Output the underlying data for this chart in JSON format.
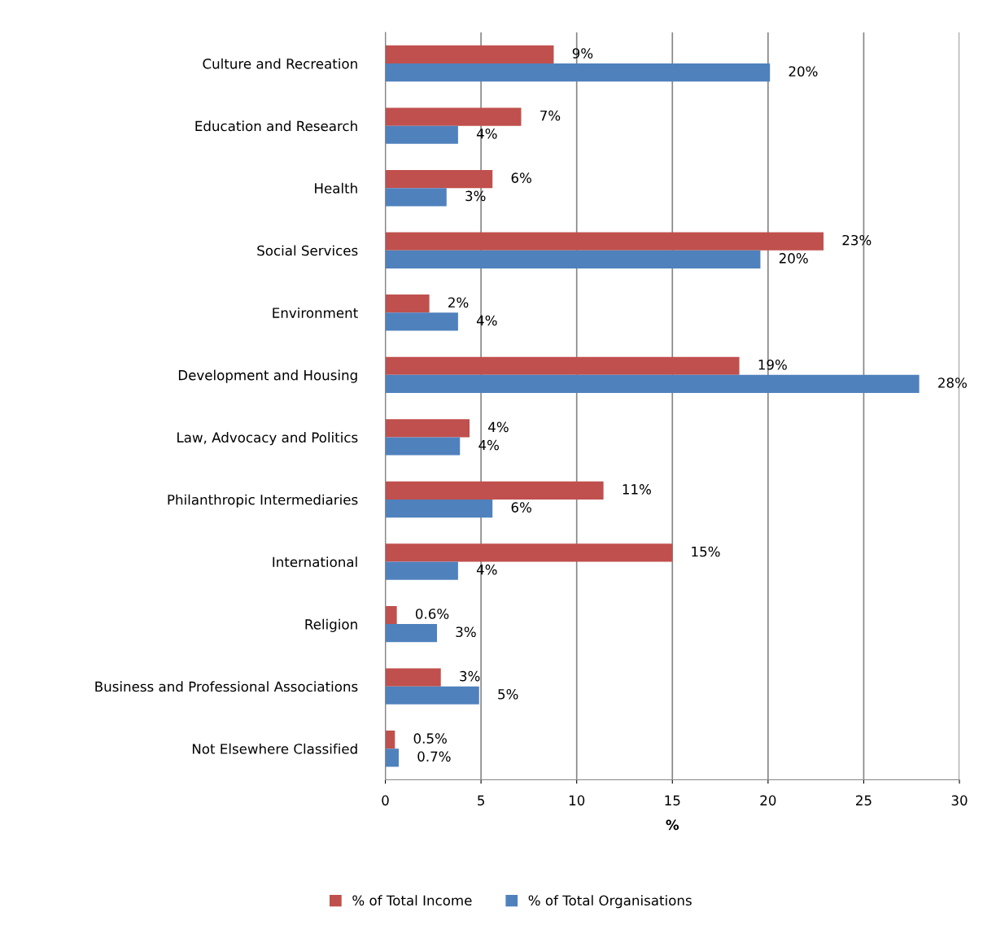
{
  "chart_data": {
    "type": "bar",
    "orientation": "horizontal",
    "xlabel": "%",
    "categories": [
      "Culture and Recreation",
      "Education and Research",
      "Health",
      "Social Services",
      "Environment",
      "Development and Housing",
      "Law, Advocacy and Politics",
      "Philanthropic Intermediaries",
      "International",
      "Religion",
      "Business and Professional Associations",
      "Not Elsewhere Classified"
    ],
    "series": [
      {
        "name": "% of Total Income",
        "color": "#c0504d",
        "values": [
          8.8,
          7.1,
          5.6,
          22.9,
          2.3,
          18.5,
          4.4,
          11.4,
          15.0,
          0.6,
          2.9,
          0.5
        ],
        "value_labels": [
          "9%",
          "7%",
          "6%",
          "23%",
          "2%",
          "19%",
          "4%",
          "11%",
          "15%",
          "0.6%",
          "3%",
          "0.5%"
        ]
      },
      {
        "name": "% of Total Organisations",
        "color": "#4f81bd",
        "values": [
          20.1,
          3.8,
          3.2,
          19.6,
          3.8,
          27.9,
          3.9,
          5.6,
          3.8,
          2.7,
          4.9,
          0.7
        ],
        "value_labels": [
          "20%",
          "4%",
          "3%",
          "20%",
          "4%",
          "28%",
          "4%",
          "6%",
          "4%",
          "3%",
          "5%",
          "0.7%"
        ]
      }
    ],
    "xlim": [
      0,
      30
    ],
    "xticks": [
      0,
      5,
      10,
      15,
      20,
      25,
      30
    ],
    "grid": "x",
    "legend": "bottom"
  }
}
